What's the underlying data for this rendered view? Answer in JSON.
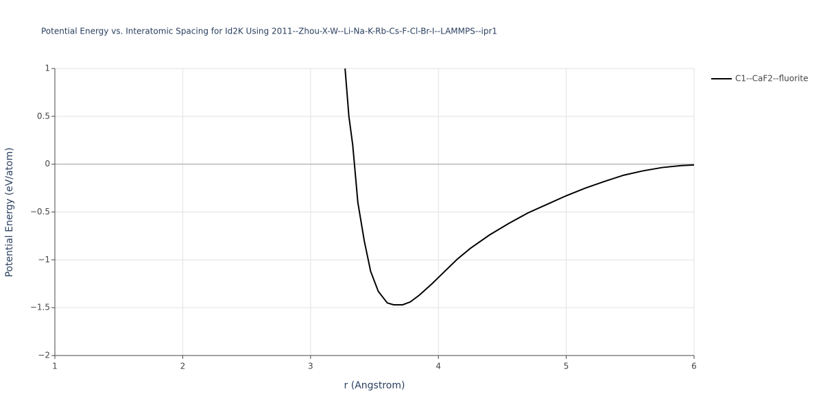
{
  "chart_data": {
    "type": "line",
    "title": "Potential Energy vs. Interatomic Spacing for Id2K Using 2011--Zhou-X-W--Li-Na-K-Rb-Cs-F-Cl-Br-I--LAMMPS--ipr1",
    "x_label": "r (Angstrom)",
    "y_label": "Potential Energy (eV/atom)",
    "x": [
      3.27,
      3.3,
      3.33,
      3.37,
      3.42,
      3.47,
      3.53,
      3.6,
      3.65,
      3.72,
      3.78,
      3.85,
      3.95,
      4.05,
      4.15,
      4.25,
      4.4,
      4.55,
      4.7,
      4.85,
      5.0,
      5.15,
      5.3,
      5.45,
      5.6,
      5.75,
      5.9,
      6.0
    ],
    "series": [
      {
        "name": "C1--CaF2--fluorite",
        "color": "#000000",
        "values": [
          1.0,
          0.5,
          0.2,
          -0.4,
          -0.8,
          -1.12,
          -1.33,
          -1.45,
          -1.47,
          -1.47,
          -1.44,
          -1.37,
          -1.25,
          -1.12,
          -0.99,
          -0.88,
          -0.74,
          -0.62,
          -0.51,
          -0.42,
          -0.33,
          -0.25,
          -0.18,
          -0.115,
          -0.07,
          -0.035,
          -0.015,
          -0.008
        ]
      }
    ],
    "xlim": [
      1,
      6
    ],
    "xticks": [
      1,
      2,
      3,
      4,
      5,
      6
    ],
    "ylim": [
      -2,
      1
    ],
    "yticks": [
      {
        "value": -2,
        "label": "−2"
      },
      {
        "value": -1.5,
        "label": "−1.5"
      },
      {
        "value": -1,
        "label": "−1"
      },
      {
        "value": -0.5,
        "label": "−0.5"
      },
      0,
      0.5,
      1
    ],
    "grid": true,
    "legend": "top-right"
  }
}
